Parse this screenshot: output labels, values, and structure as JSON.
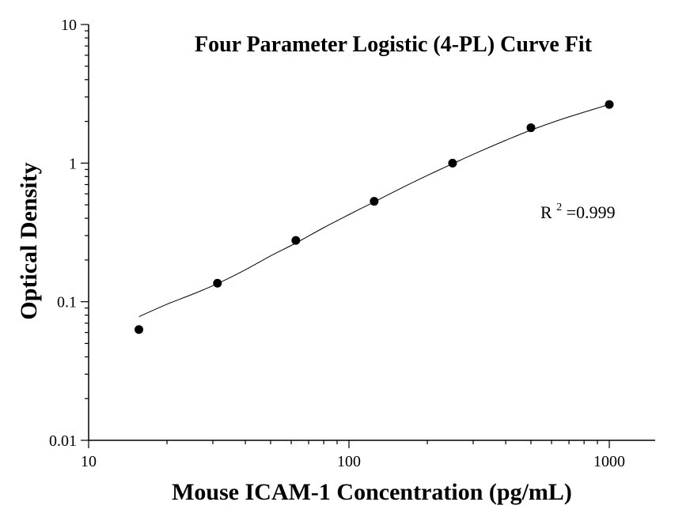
{
  "chart_data": {
    "type": "scatter",
    "title": "Four Parameter Logistic (4-PL) Curve Fit",
    "xlabel": "Mouse ICAM-1 Concentration (pg/mL)",
    "ylabel": "Optical Density",
    "xscale": "log",
    "yscale": "log",
    "xlim": [
      10,
      1500
    ],
    "ylim": [
      0.01,
      10
    ],
    "x_ticks": [
      10,
      100,
      1000
    ],
    "x_tick_labels": [
      "10",
      "100",
      "1000"
    ],
    "y_ticks": [
      0.01,
      0.1,
      1,
      10
    ],
    "y_tick_labels": [
      "0.01",
      "0.1",
      "1",
      "10"
    ],
    "grid": false,
    "series": [
      {
        "kind": "points",
        "x": [
          15.6,
          31.25,
          62.5,
          125,
          250,
          500,
          1000
        ],
        "y": [
          0.063,
          0.136,
          0.277,
          0.53,
          1.0,
          1.8,
          2.65
        ]
      },
      {
        "kind": "fit-curve",
        "x": [
          15.6,
          20,
          25,
          31.25,
          40,
          50,
          62.5,
          80,
          100,
          125,
          160,
          200,
          250,
          320,
          400,
          500,
          640,
          800,
          1000
        ],
        "y": [
          0.078,
          0.096,
          0.113,
          0.135,
          0.17,
          0.214,
          0.265,
          0.342,
          0.425,
          0.525,
          0.665,
          0.815,
          0.99,
          1.22,
          1.46,
          1.73,
          2.04,
          2.33,
          2.65
        ]
      }
    ],
    "annotation": {
      "base": "R",
      "sup": "2",
      "rest": "=0.999"
    }
  }
}
